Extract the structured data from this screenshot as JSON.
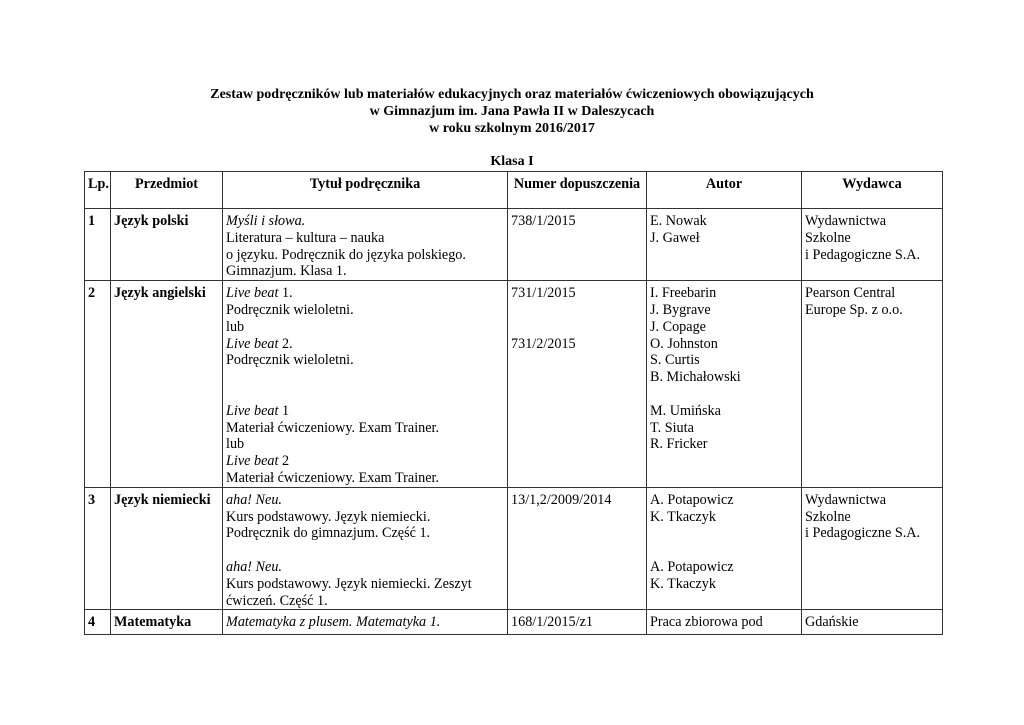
{
  "document": {
    "title_lines": [
      "Zestaw podręczników lub materiałów edukacyjnych oraz materiałów ćwiczeniowych obowiązujących",
      "w Gimnazjum im. Jana Pawła II w Daleszycach",
      "w roku szkolnym 2016/2017"
    ],
    "class_heading": "Klasa I"
  },
  "table": {
    "headers": [
      "Lp.",
      "Przedmiot",
      "Tytuł podręcznika",
      "Numer dopuszczenia",
      "Autor",
      "Wydawca"
    ],
    "rows": [
      {
        "lp": "1",
        "subject": "Język polski",
        "title": [
          {
            "i": "Myśli i słowa.",
            "t": ""
          },
          {
            "i": "",
            "t": "Literatura – kultura – nauka"
          },
          {
            "i": "",
            "t": "o języku. Podręcznik do języka polskiego."
          },
          {
            "i": "",
            "t": "Gimnazjum. Klasa 1."
          }
        ],
        "number": [
          "738/1/2015"
        ],
        "authors": [
          "E. Nowak",
          "J. Gaweł"
        ],
        "publisher": [
          "Wydawnictwa",
          "Szkolne",
          "i Pedagogiczne S.A."
        ]
      },
      {
        "lp": "2",
        "subject": "Język angielski",
        "title": [
          {
            "i": "Live beat",
            "t": " 1."
          },
          {
            "i": "",
            "t": "Podręcznik wieloletni."
          },
          {
            "i": "",
            "t": "lub"
          },
          {
            "i": "Live beat",
            "t": " 2."
          },
          {
            "i": "",
            "t": "Podręcznik wieloletni."
          },
          {
            "i": "",
            "t": ""
          },
          {
            "i": "",
            "t": ""
          },
          {
            "i": "Live beat",
            "t": " 1"
          },
          {
            "i": "",
            "t": "Materiał ćwiczeniowy. Exam Trainer."
          },
          {
            "i": "",
            "t": "lub"
          },
          {
            "i": "Live beat",
            "t": " 2"
          },
          {
            "i": "",
            "t": "Materiał ćwiczeniowy. Exam Trainer."
          }
        ],
        "number": [
          "731/1/2015",
          "",
          "",
          "731/2/2015"
        ],
        "authors": [
          "I. Freebarin",
          "J. Bygrave",
          "J.  Copage",
          "O. Johnston",
          "S. Curtis",
          "B. Michałowski",
          "",
          "M. Umińska",
          "T. Siuta",
          "R. Fricker"
        ],
        "publisher": [
          "Pearson Central",
          "Europe Sp. z o.o."
        ]
      },
      {
        "lp": "3",
        "subject": "Język niemiecki",
        "title": [
          {
            "i": "aha! Neu.",
            "t": ""
          },
          {
            "i": "",
            "t": "Kurs podstawowy. Język niemiecki."
          },
          {
            "i": "",
            "t": "Podręcznik do gimnazjum. Część 1."
          },
          {
            "i": "",
            "t": ""
          },
          {
            "i": "aha! Neu.",
            "t": ""
          },
          {
            "i": "",
            "t": "Kurs podstawowy. Język niemiecki. Zeszyt"
          },
          {
            "i": "",
            "t": "ćwiczeń. Część 1."
          }
        ],
        "number": [
          "13/1,2/2009/2014"
        ],
        "authors": [
          "A. Potapowicz",
          "K. Tkaczyk",
          "",
          "",
          "A. Potapowicz",
          "K. Tkaczyk"
        ],
        "publisher": [
          "Wydawnictwa",
          "Szkolne",
          "i Pedagogiczne S.A."
        ]
      },
      {
        "lp": "4",
        "subject": "Matematyka",
        "title": [
          {
            "i": "Matematyka z plusem. Matematyka 1.",
            "t": ""
          }
        ],
        "number": [
          "168/1/2015/z1"
        ],
        "authors": [
          "Praca zbiorowa pod"
        ],
        "publisher": [
          "Gdańskie"
        ]
      }
    ]
  }
}
